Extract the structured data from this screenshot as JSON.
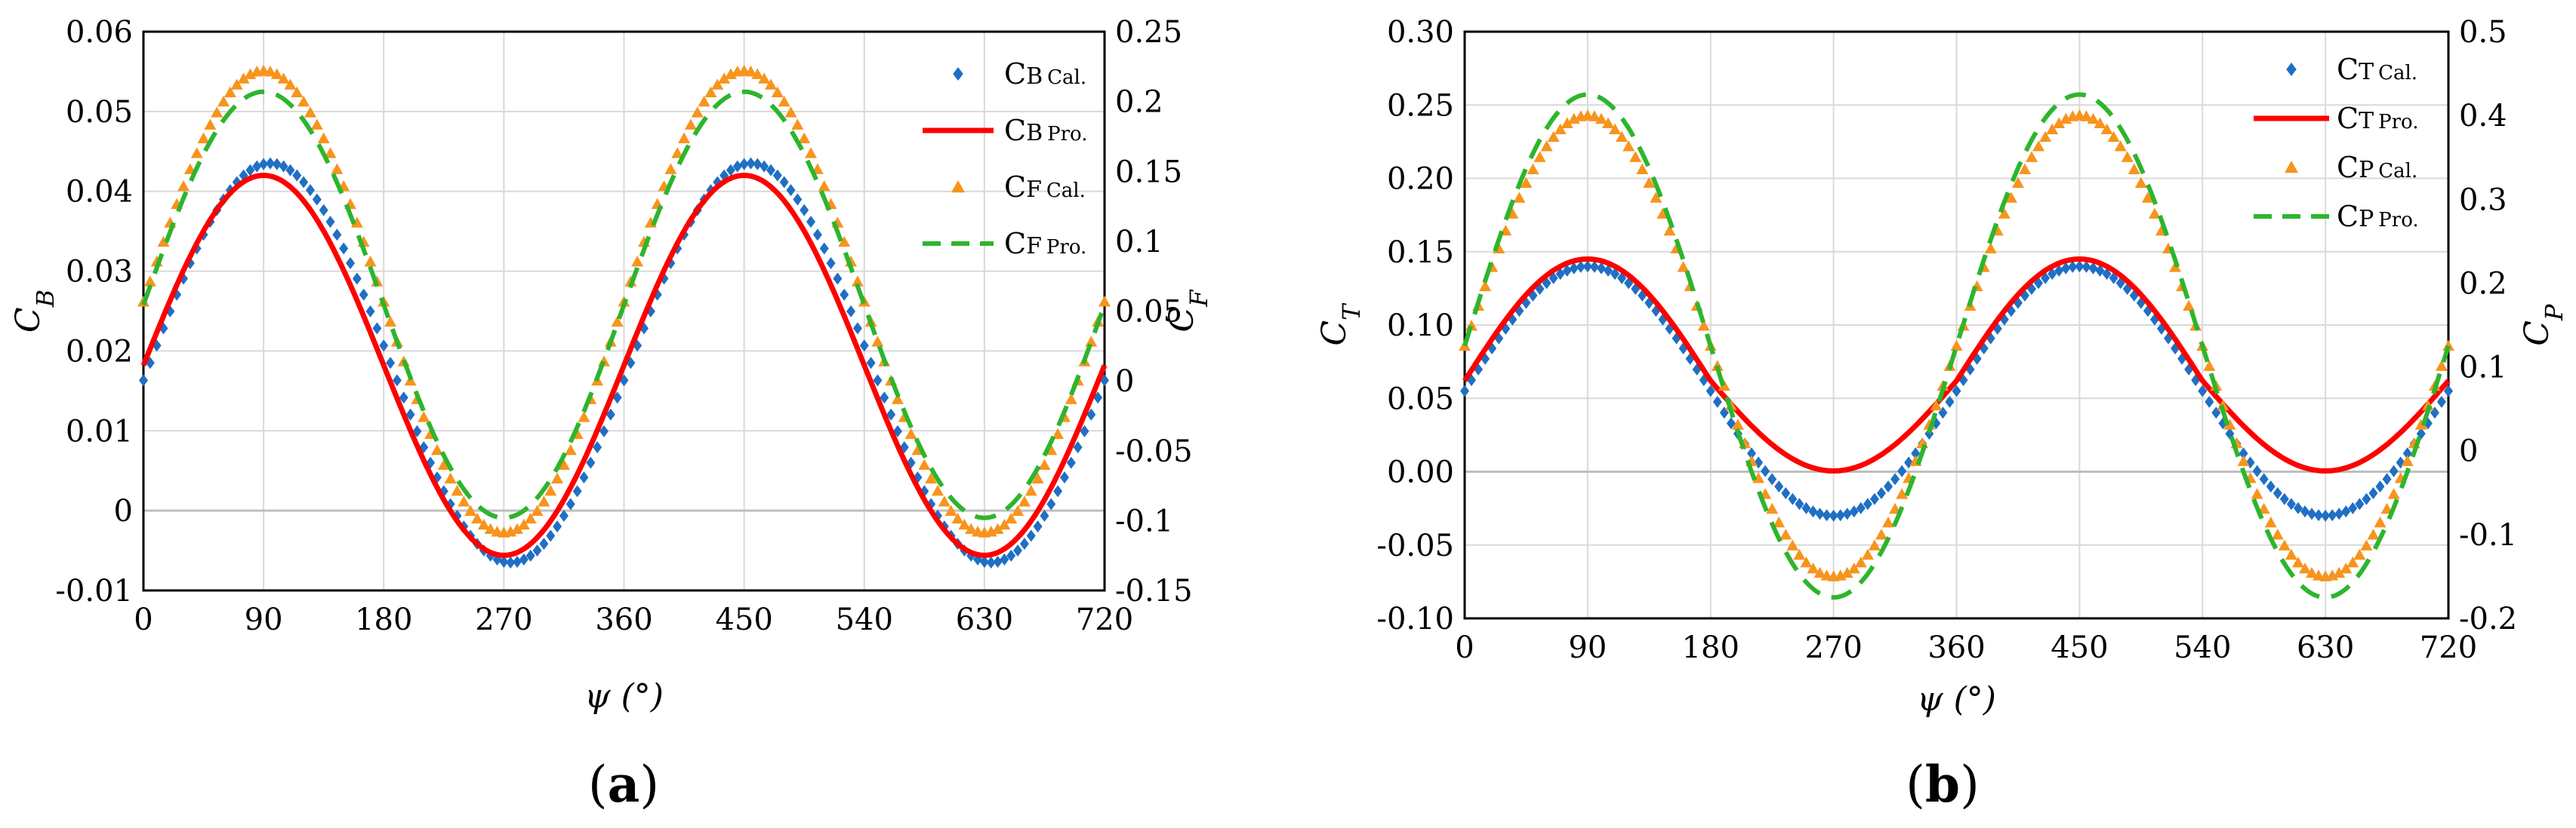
{
  "figure": {
    "panels": [
      {
        "id": "a",
        "label_open": "(",
        "label_letter": "a",
        "label_close": ")"
      },
      {
        "id": "b",
        "label_open": "(",
        "label_letter": "b",
        "label_close": ")"
      }
    ]
  },
  "colors": {
    "blue": "#1f6fc5",
    "red": "#ff0000",
    "orange": "#f7941d",
    "green": "#2db52d",
    "grid": "#d9d9d9",
    "zero_line": "#bfbfbf"
  },
  "chart_data": [
    {
      "id": "a",
      "type": "line",
      "xlabel": "ψ (°)",
      "ylabel_left": "C_B",
      "ylabel_right": "C_F",
      "x_ticks": [
        "0",
        "90",
        "180",
        "270",
        "360",
        "450",
        "540",
        "630",
        "720"
      ],
      "xlim": [
        0,
        720
      ],
      "ylim_left": [
        -0.01,
        0.06
      ],
      "ylim_right": [
        -0.15,
        0.25
      ],
      "y_ticks_left": [
        "-0.01",
        "0",
        "0.01",
        "0.02",
        "0.03",
        "0.04",
        "0.05",
        "0.06"
      ],
      "y_ticks_right": [
        "-0.15",
        "-0.1",
        "-0.05",
        "0",
        "0.05",
        "0.1",
        "0.15",
        "0.2",
        "0.25"
      ],
      "series": [
        {
          "name": "CB Cal.",
          "axis": "left",
          "style": "diamond",
          "color": "blue",
          "mean": 0.0185,
          "amp": 0.025,
          "phase": 95,
          "shape": 1.0
        },
        {
          "name": "CB Pro.",
          "axis": "left",
          "style": "solid",
          "color": "red",
          "mean": 0.0182,
          "amp": 0.0238,
          "phase": 90,
          "shape": 1.0
        },
        {
          "name": "CF Cal.",
          "axis": "right",
          "style": "triangle",
          "color": "orange",
          "mean": 0.0567,
          "amp": 0.1653,
          "phase": 90,
          "shape": 1.0
        },
        {
          "name": "CF Pro.",
          "axis": "right",
          "style": "dashed",
          "color": "green",
          "mean": 0.0545,
          "amp": 0.1525,
          "phase": 90,
          "shape": 1.0
        }
      ],
      "legend": [
        {
          "main": "C",
          "sub": "B",
          "tag": "Cal.",
          "style": "diamond",
          "color": "blue"
        },
        {
          "main": "C",
          "sub": "B",
          "tag": "Pro.",
          "style": "solid",
          "color": "red"
        },
        {
          "main": "C",
          "sub": "F",
          "tag": "Cal.",
          "style": "triangle",
          "color": "orange"
        },
        {
          "main": "C",
          "sub": "F",
          "tag": "Pro.",
          "style": "dashed",
          "color": "green"
        }
      ]
    },
    {
      "id": "b",
      "type": "line",
      "xlabel": "ψ (°)",
      "ylabel_left": "C_T",
      "ylabel_right": "C_P",
      "x_ticks": [
        "0",
        "90",
        "180",
        "270",
        "360",
        "450",
        "540",
        "630",
        "720"
      ],
      "xlim": [
        0,
        720
      ],
      "ylim_left": [
        -0.1,
        0.3
      ],
      "ylim_right": [
        -0.2,
        0.5
      ],
      "y_ticks_left": [
        "-0.10",
        "-0.05",
        "0.00",
        "0.05",
        "0.10",
        "0.15",
        "0.20",
        "0.25",
        "0.30"
      ],
      "y_ticks_right": [
        "-0.2",
        "-0.1",
        "0",
        "0.1",
        "0.2",
        "0.3",
        "0.4",
        "0.5"
      ],
      "series": [
        {
          "name": "CT Cal.",
          "axis": "left",
          "style": "diamond",
          "color": "blue",
          "mean": 0.055,
          "amp": 0.085,
          "phase": 90,
          "shape": 1.0
        },
        {
          "name": "CT Pro.",
          "axis": "left",
          "style": "solid",
          "color": "red",
          "mean": 0.062,
          "amp": 0.083,
          "phase": 90,
          "shape": 1.35
        },
        {
          "name": "CP Cal.",
          "axis": "right",
          "style": "triangle",
          "color": "orange",
          "mean": 0.125,
          "amp": 0.275,
          "phase": 90,
          "shape": 1.0
        },
        {
          "name": "CP Pro.",
          "axis": "right",
          "style": "dashed",
          "color": "green",
          "mean": 0.125,
          "amp": 0.3,
          "phase": 90,
          "shape": 1.0
        }
      ],
      "legend": [
        {
          "main": "C",
          "sub": "T",
          "tag": "Cal.",
          "style": "diamond",
          "color": "blue"
        },
        {
          "main": "C",
          "sub": "T",
          "tag": "Pro.",
          "style": "solid",
          "color": "red"
        },
        {
          "main": "C",
          "sub": "P",
          "tag": "Cal.",
          "style": "triangle",
          "color": "orange"
        },
        {
          "main": "C",
          "sub": "P",
          "tag": "Pro.",
          "style": "dashed",
          "color": "green"
        }
      ]
    }
  ]
}
